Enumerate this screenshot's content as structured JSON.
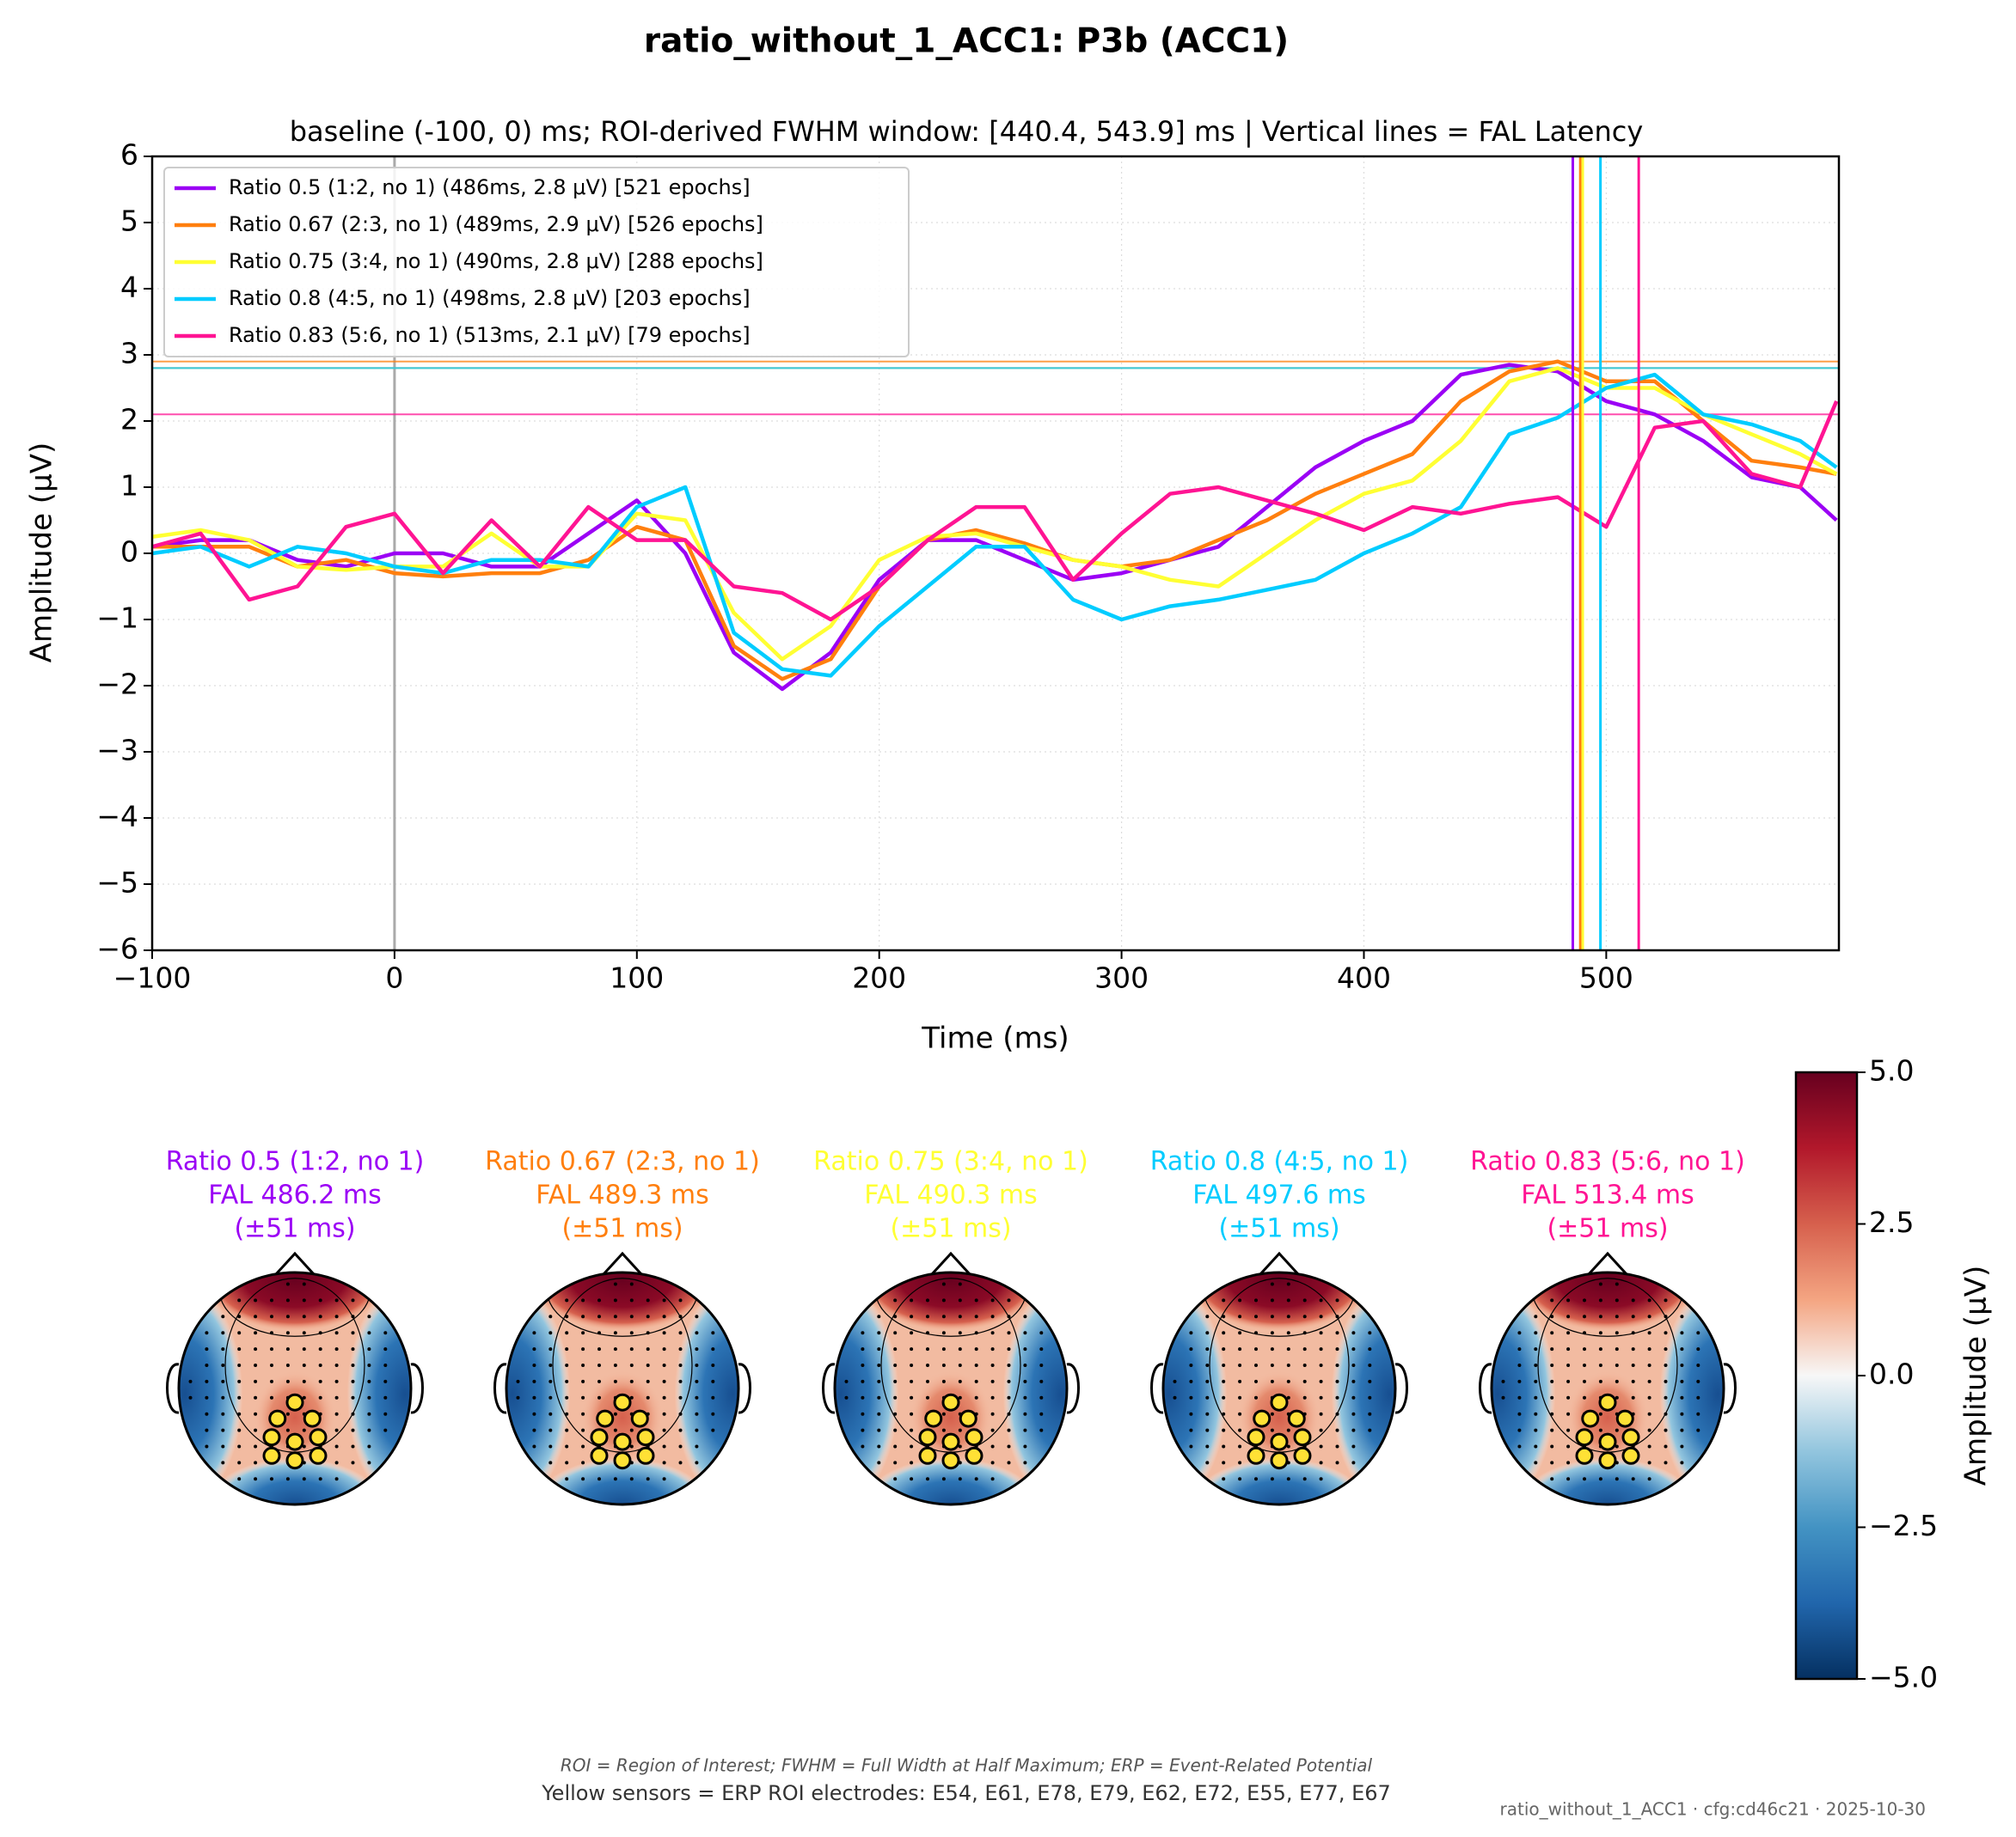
{
  "title": "ratio_without_1_ACC1: P3b (ACC1)",
  "chart_data": {
    "type": "line",
    "subtitle": "baseline (-100, 0) ms; ROI-derived FWHM window: [440.4, 543.9] ms | Vertical lines = FAL Latency",
    "x_label": "Time (ms)",
    "y_label": "Amplitude (μV)",
    "xlim": [
      -100,
      596
    ],
    "ylim": [
      -6,
      6
    ],
    "xticks": [
      {
        "value": -100,
        "label": "−100"
      },
      0,
      100,
      200,
      300,
      400,
      500
    ],
    "yticks": [
      {
        "value": -6,
        "label": "−6"
      },
      {
        "value": -5,
        "label": "−5"
      },
      {
        "value": -4,
        "label": "−4"
      },
      {
        "value": -3,
        "label": "−3"
      },
      {
        "value": -2,
        "label": "−2"
      },
      {
        "value": -1,
        "label": "−1"
      },
      0,
      1,
      2,
      3,
      4,
      5,
      6
    ],
    "grid": true,
    "legend": "upper left",
    "x": [
      -100,
      -80,
      -60,
      -40,
      -20,
      0,
      20,
      40,
      60,
      80,
      100,
      120,
      140,
      160,
      180,
      200,
      220,
      240,
      260,
      280,
      300,
      320,
      340,
      360,
      380,
      400,
      420,
      440,
      460,
      480,
      500,
      520,
      540,
      560,
      580,
      595
    ],
    "series": [
      {
        "name": "Ratio 0.5 (1:2, no 1) (486ms, 2.8 μV) [521 epochs]",
        "color": "#9b00f5",
        "peak": 2.8,
        "latency": 486.2,
        "values": [
          0.1,
          0.2,
          0.2,
          -0.1,
          -0.2,
          0.0,
          0.0,
          -0.2,
          -0.2,
          0.3,
          0.8,
          0.0,
          -1.5,
          -2.05,
          -1.5,
          -0.4,
          0.2,
          0.2,
          -0.1,
          -0.4,
          -0.3,
          -0.1,
          0.1,
          0.7,
          1.3,
          1.7,
          2.0,
          2.7,
          2.85,
          2.75,
          2.3,
          2.1,
          1.7,
          1.15,
          1.0,
          0.5
        ]
      },
      {
        "name": "Ratio 0.67 (2:3, no 1) (489ms, 2.9 μV) [526 epochs]",
        "color": "#ff7f0e",
        "peak": 2.9,
        "latency": 489.3,
        "values": [
          0.1,
          0.1,
          0.1,
          -0.2,
          -0.1,
          -0.3,
          -0.35,
          -0.3,
          -0.3,
          -0.1,
          0.4,
          0.2,
          -1.4,
          -1.9,
          -1.6,
          -0.5,
          0.2,
          0.35,
          0.15,
          -0.1,
          -0.2,
          -0.1,
          0.2,
          0.5,
          0.9,
          1.2,
          1.5,
          2.3,
          2.75,
          2.9,
          2.6,
          2.6,
          2.0,
          1.4,
          1.3,
          1.2
        ]
      },
      {
        "name": "Ratio 0.75 (3:4, no 1) (490ms, 2.8 μV) [288 epochs]",
        "color": "#ffff33",
        "peak": 2.8,
        "latency": 490.3,
        "values": [
          0.25,
          0.35,
          0.2,
          -0.2,
          -0.25,
          -0.2,
          -0.2,
          0.3,
          -0.2,
          -0.2,
          0.6,
          0.5,
          -0.9,
          -1.6,
          -1.1,
          -0.1,
          0.25,
          0.3,
          0.1,
          -0.1,
          -0.2,
          -0.4,
          -0.5,
          0.0,
          0.5,
          0.9,
          1.1,
          1.7,
          2.6,
          2.8,
          2.5,
          2.5,
          2.1,
          1.8,
          1.5,
          1.2
        ]
      },
      {
        "name": "Ratio 0.8 (4:5, no 1) (498ms, 2.8 μV) [203 epochs]",
        "color": "#00ccff",
        "peak": 2.8,
        "latency": 497.6,
        "values": [
          0.0,
          0.1,
          -0.2,
          0.1,
          0.0,
          -0.2,
          -0.3,
          -0.1,
          -0.1,
          -0.2,
          0.7,
          1.0,
          -1.2,
          -1.75,
          -1.85,
          -1.1,
          -0.5,
          0.1,
          0.1,
          -0.7,
          -1.0,
          -0.8,
          -0.7,
          -0.55,
          -0.4,
          0.0,
          0.3,
          0.7,
          1.8,
          2.05,
          2.5,
          2.7,
          2.1,
          1.95,
          1.7,
          1.3
        ]
      },
      {
        "name": "Ratio 0.83 (5:6, no 1) (513ms, 2.1 μV) [79 epochs]",
        "color": "#ff1493",
        "peak": 2.1,
        "latency": 513.4,
        "values": [
          0.1,
          0.3,
          -0.7,
          -0.5,
          0.4,
          0.6,
          -0.3,
          0.5,
          -0.2,
          0.7,
          0.2,
          0.2,
          -0.5,
          -0.6,
          -1.0,
          -0.5,
          0.2,
          0.7,
          0.7,
          -0.4,
          0.3,
          0.9,
          1.0,
          0.8,
          0.6,
          0.35,
          0.7,
          0.6,
          0.75,
          0.85,
          0.4,
          1.9,
          2.0,
          1.2,
          1.0,
          2.3
        ]
      }
    ]
  },
  "topomaps": {
    "maps": [
      {
        "title": "Ratio 0.5 (1:2, no 1)",
        "fal": "FAL 486.2 ms",
        "window": "(±51 ms)"
      },
      {
        "title": "Ratio 0.67 (2:3, no 1)",
        "fal": "FAL 489.3 ms",
        "window": "(±51 ms)"
      },
      {
        "title": "Ratio 0.75 (3:4, no 1)",
        "fal": "FAL 490.3 ms",
        "window": "(±51 ms)"
      },
      {
        "title": "Ratio 0.8 (4:5, no 1)",
        "fal": "FAL 497.6 ms",
        "window": "(±51 ms)"
      },
      {
        "title": "Ratio 0.83 (5:6, no 1)",
        "fal": "FAL 513.4 ms",
        "window": "(±51 ms)"
      }
    ],
    "colorbar": {
      "label": "Amplitude (μV)",
      "lim": [
        -5,
        5
      ],
      "ticks": [
        {
          "value": 5,
          "label": "5.0"
        },
        {
          "value": 2.5,
          "label": "2.5"
        },
        {
          "value": 0,
          "label": "0.0"
        },
        {
          "value": -2.5,
          "label": "−2.5"
        },
        {
          "value": -5,
          "label": "−5.0"
        }
      ]
    }
  },
  "footer": {
    "note": "ROI = Region of Interest; FWHM = Full Width at Half Maximum; ERP = Event-Related Potential",
    "sensors": "Yellow sensors = ERP ROI electrodes: E54, E61, E78, E79, E62, E72, E55, E77, E67",
    "stamp": "ratio_without_1_ACC1 · cfg:cd46c21 · 2025-10-30"
  }
}
